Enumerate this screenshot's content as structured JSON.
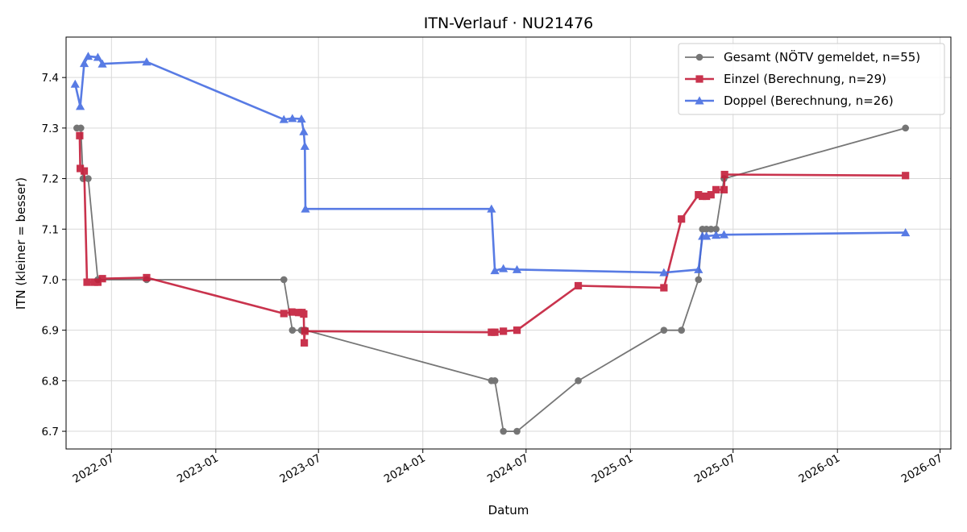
{
  "chart_data": {
    "type": "line",
    "title": "ITN-Verlauf · NU21476",
    "xlabel": "Datum",
    "ylabel": "ITN  (kleiner = besser)",
    "ylim": [
      6.665,
      7.48
    ],
    "xlim": [
      "2022-04-12",
      "2026-07-20"
    ],
    "grid": true,
    "legend_position": "top-right",
    "x_ticks": [
      "2022-07",
      "2023-01",
      "2023-07",
      "2024-01",
      "2024-07",
      "2025-01",
      "2025-07",
      "2026-01",
      "2026-07"
    ],
    "y_ticks": [
      "6.7",
      "6.8",
      "6.9",
      "7.0",
      "7.1",
      "7.2",
      "7.3",
      "7.4"
    ],
    "series": [
      {
        "name": "Gesamt (NÖTV gemeldet, n=55)",
        "color": "#555555",
        "marker": "circle",
        "points": [
          [
            "2022-05-01",
            7.3
          ],
          [
            "2022-05-08",
            7.3
          ],
          [
            "2022-05-12",
            7.2
          ],
          [
            "2022-05-21",
            7.2
          ],
          [
            "2022-06-07",
            7.0
          ],
          [
            "2022-09-01",
            7.0
          ],
          [
            "2023-05-01",
            7.0
          ],
          [
            "2023-05-16",
            6.9
          ],
          [
            "2023-06-01",
            6.9
          ],
          [
            "2023-06-08",
            6.9
          ],
          [
            "2024-05-01",
            6.8
          ],
          [
            "2024-05-07",
            6.8
          ],
          [
            "2024-05-22",
            6.7
          ],
          [
            "2024-06-15",
            6.7
          ],
          [
            "2024-10-01",
            6.8
          ],
          [
            "2025-03-01",
            6.9
          ],
          [
            "2025-04-01",
            6.9
          ],
          [
            "2025-05-01",
            7.0
          ],
          [
            "2025-05-08",
            7.1
          ],
          [
            "2025-05-15",
            7.1
          ],
          [
            "2025-05-23",
            7.1
          ],
          [
            "2025-06-01",
            7.1
          ],
          [
            "2025-06-15",
            7.2
          ],
          [
            "2026-05-01",
            7.3
          ]
        ]
      },
      {
        "name": "Einzel (Berechnung, n=29)",
        "color": "#c41e3a",
        "marker": "square",
        "points": [
          [
            "2022-05-06",
            7.285
          ],
          [
            "2022-05-07",
            7.22
          ],
          [
            "2022-05-14",
            7.215
          ],
          [
            "2022-05-19",
            6.995
          ],
          [
            "2022-06-01",
            6.995
          ],
          [
            "2022-06-07",
            6.995
          ],
          [
            "2022-06-15",
            7.002
          ],
          [
            "2022-09-01",
            7.004
          ],
          [
            "2023-05-01",
            6.933
          ],
          [
            "2023-05-15",
            6.936
          ],
          [
            "2023-05-27",
            6.935
          ],
          [
            "2023-06-02",
            6.935
          ],
          [
            "2023-06-05",
            6.932
          ],
          [
            "2023-06-06",
            6.875
          ],
          [
            "2023-06-07",
            6.898
          ],
          [
            "2024-05-01",
            6.896
          ],
          [
            "2024-05-07",
            6.896
          ],
          [
            "2024-05-22",
            6.898
          ],
          [
            "2024-06-15",
            6.9
          ],
          [
            "2024-10-01",
            6.988
          ],
          [
            "2025-03-01",
            6.984
          ],
          [
            "2025-04-01",
            7.12
          ],
          [
            "2025-05-01",
            7.168
          ],
          [
            "2025-05-08",
            7.165
          ],
          [
            "2025-05-15",
            7.165
          ],
          [
            "2025-05-23",
            7.168
          ],
          [
            "2025-06-01",
            7.178
          ],
          [
            "2025-06-15",
            7.178
          ],
          [
            "2025-06-16",
            7.208
          ],
          [
            "2026-05-01",
            7.206
          ]
        ]
      },
      {
        "name": "Doppel (Berechnung, n=26)",
        "color": "#4169e1",
        "marker": "triangle",
        "points": [
          [
            "2022-04-28",
            7.387
          ],
          [
            "2022-05-07",
            7.343
          ],
          [
            "2022-05-14",
            7.428
          ],
          [
            "2022-05-21",
            7.442
          ],
          [
            "2022-06-07",
            7.44
          ],
          [
            "2022-06-15",
            7.427
          ],
          [
            "2022-09-01",
            7.431
          ],
          [
            "2023-05-01",
            7.317
          ],
          [
            "2023-05-16",
            7.319
          ],
          [
            "2023-06-01",
            7.318
          ],
          [
            "2023-06-05",
            7.293
          ],
          [
            "2023-06-07",
            7.264
          ],
          [
            "2023-06-08",
            7.14
          ],
          [
            "2024-05-01",
            7.14
          ],
          [
            "2024-05-07",
            7.018
          ],
          [
            "2024-05-22",
            7.022
          ],
          [
            "2024-06-15",
            7.02
          ],
          [
            "2025-03-01",
            7.014
          ],
          [
            "2025-05-01",
            7.02
          ],
          [
            "2025-05-08",
            7.086
          ],
          [
            "2025-05-15",
            7.086
          ],
          [
            "2025-06-01",
            7.088
          ],
          [
            "2025-06-15",
            7.089
          ],
          [
            "2026-05-01",
            7.093
          ]
        ]
      }
    ]
  }
}
